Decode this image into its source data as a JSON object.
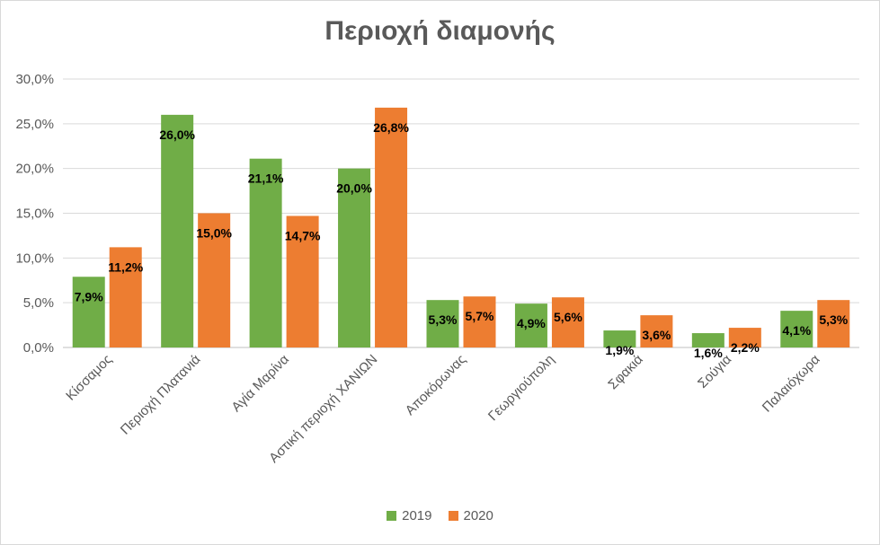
{
  "chart_data": {
    "type": "bar",
    "title": "Περιοχή διαμονής",
    "xlabel": "",
    "ylabel": "",
    "ylim": [
      0,
      30
    ],
    "yticks": [
      "0,0%",
      "5,0%",
      "10,0%",
      "15,0%",
      "20,0%",
      "25,0%",
      "30,0%"
    ],
    "ytick_values": [
      0,
      5,
      10,
      15,
      20,
      25,
      30
    ],
    "grid": true,
    "legend_position": "bottom",
    "categories": [
      "Κίσσαμος",
      "Περιοχή Πλατανιά",
      "Αγία Μαρίνα",
      "Αστική περιοχή ΧΑΝΙΩΝ",
      "Αποκόρωνας",
      "Γεωργιούπολη",
      "Σφακιά",
      "Σούγια",
      "Παλαιόχωρα"
    ],
    "series": [
      {
        "name": "2019",
        "color": "#70ad47",
        "values": [
          7.9,
          26.0,
          21.1,
          20.0,
          5.3,
          4.9,
          1.9,
          1.6,
          4.1
        ],
        "labels": [
          "7,9%",
          "26,0%",
          "21,1%",
          "20,0%",
          "5,3%",
          "4,9%",
          "1,9%",
          "1,6%",
          "4,1%"
        ]
      },
      {
        "name": "2020",
        "color": "#ed7d31",
        "values": [
          11.2,
          15.0,
          14.7,
          26.8,
          5.7,
          5.6,
          3.6,
          2.2,
          5.3
        ],
        "labels": [
          "11,2%",
          "15,0%",
          "14,7%",
          "26,8%",
          "5,7%",
          "5,6%",
          "3,6%",
          "2,2%",
          "5,3%"
        ]
      }
    ]
  }
}
